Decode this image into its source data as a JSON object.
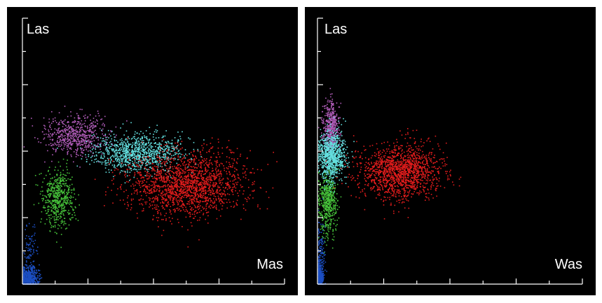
{
  "chart_data": [
    {
      "type": "scatter",
      "ylabel": "Las",
      "xlabel": "Mas",
      "xlim": [
        0,
        400
      ],
      "ylim": [
        0,
        400
      ],
      "x_ticks": [
        100,
        200,
        300
      ],
      "x_minor_ticks": [
        50,
        150,
        250,
        350
      ],
      "y_ticks": [
        100,
        200,
        300
      ],
      "y_minor_ticks": [
        50,
        150,
        250,
        350
      ],
      "series": [
        {
          "name": "blue",
          "color": "#1c4fc4",
          "n": 500,
          "cx": 8,
          "cy": 8,
          "sx": 8,
          "sy": 8
        },
        {
          "name": "blue-tail",
          "color": "#1c4fc4",
          "n": 120,
          "cx": 12,
          "cy": 40,
          "sx": 6,
          "sy": 25
        },
        {
          "name": "green",
          "color": "#46c23a",
          "n": 550,
          "cx": 55,
          "cy": 130,
          "sx": 12,
          "sy": 22
        },
        {
          "name": "violet",
          "color": "#b05cb8",
          "n": 600,
          "cx": 80,
          "cy": 225,
          "sx": 25,
          "sy": 15
        },
        {
          "name": "cyan",
          "color": "#64e0e0",
          "n": 1000,
          "cx": 175,
          "cy": 198,
          "sx": 33,
          "sy": 14
        },
        {
          "name": "red",
          "color": "#e01c1c",
          "n": 1800,
          "cx": 250,
          "cy": 150,
          "sx": 45,
          "sy": 24
        }
      ]
    },
    {
      "type": "scatter",
      "ylabel": "Las",
      "xlabel": "Was",
      "xlim": [
        0,
        400
      ],
      "ylim": [
        0,
        400
      ],
      "x_ticks": [
        100,
        200,
        300
      ],
      "x_minor_ticks": [
        50,
        150,
        250,
        350
      ],
      "y_ticks": [
        100,
        200,
        300
      ],
      "y_minor_ticks": [
        50,
        150,
        250,
        350
      ],
      "series": [
        {
          "name": "blue",
          "color": "#1c4fc4",
          "n": 350,
          "cx": 3,
          "cy": 12,
          "sx": 3,
          "sy": 14
        },
        {
          "name": "blue-tail",
          "color": "#1c4fc4",
          "n": 100,
          "cx": 4,
          "cy": 50,
          "sx": 3,
          "sy": 25
        },
        {
          "name": "green",
          "color": "#46c23a",
          "n": 550,
          "cx": 15,
          "cy": 125,
          "sx": 7,
          "sy": 25
        },
        {
          "name": "violet",
          "color": "#b05cb8",
          "n": 450,
          "cx": 20,
          "cy": 235,
          "sx": 6,
          "sy": 20
        },
        {
          "name": "cyan",
          "color": "#64e0e0",
          "n": 850,
          "cx": 20,
          "cy": 195,
          "sx": 10,
          "sy": 18
        },
        {
          "name": "red",
          "color": "#e01c1c",
          "n": 1500,
          "cx": 125,
          "cy": 170,
          "sx": 30,
          "sy": 20
        }
      ]
    }
  ]
}
